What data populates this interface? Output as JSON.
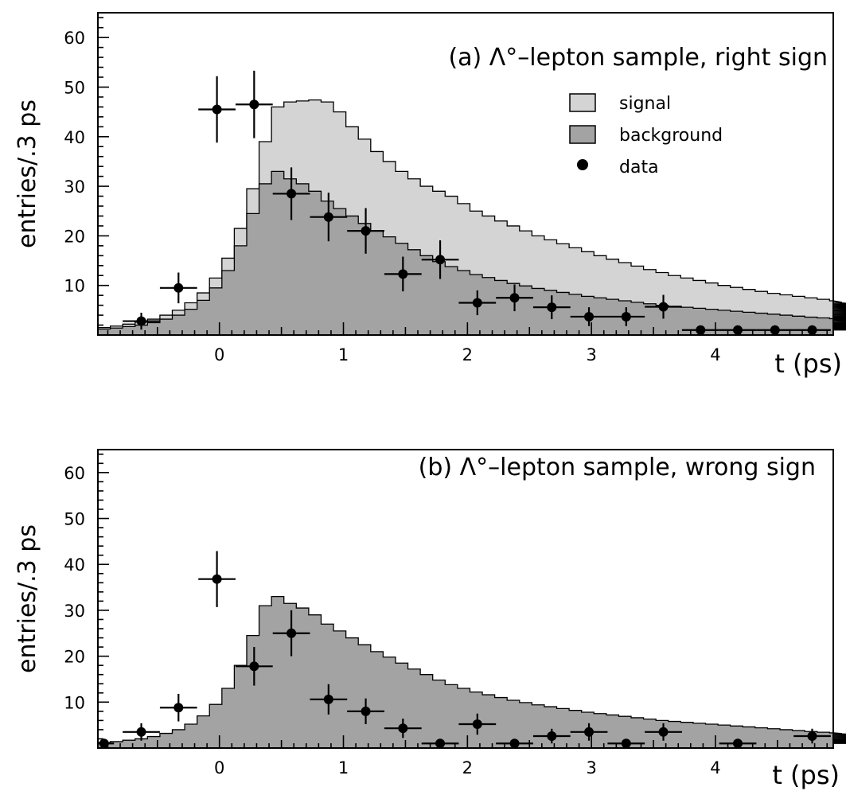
{
  "colors": {
    "signal": "#d4d4d4",
    "background": "#a3a3a3",
    "data": "#000000",
    "frame": "#000000"
  },
  "legend": {
    "position": "top-right",
    "items": [
      {
        "label": "signal",
        "symbol": "box",
        "color": "#d4d4d4"
      },
      {
        "label": "background",
        "symbol": "box",
        "color": "#a3a3a3"
      },
      {
        "label": "data",
        "symbol": "dot",
        "color": "#000000"
      }
    ]
  },
  "chart_data": [
    {
      "type": "area",
      "panel": "a",
      "title": "(a) Λ°–lepton sample, right sign",
      "xlabel": "t (ps)",
      "ylabel": "entries/.3 ps",
      "xlim": [
        -0.98,
        4.95
      ],
      "ylim": [
        0,
        65
      ],
      "xticks": [
        0,
        1,
        2,
        3,
        4
      ],
      "yticks": [
        10,
        20,
        30,
        40,
        50,
        60
      ],
      "grid": false,
      "hist_bin_width": 0.1,
      "hist_x_start": -0.98,
      "signal_total": [
        1.5,
        1.8,
        2.2,
        2.6,
        3.2,
        4,
        5,
        6.5,
        8.5,
        11.5,
        15.5,
        21.5,
        29.5,
        39,
        46,
        47,
        47.2,
        47.4,
        47,
        45,
        42,
        39.5,
        37,
        35,
        33,
        31.5,
        30,
        29,
        28,
        26.5,
        25,
        24,
        23,
        22,
        21,
        20,
        19.2,
        18.4,
        17.6,
        16.8,
        16,
        15.3,
        14.6,
        13.9,
        13.2,
        12.6,
        12,
        11.5,
        11,
        10.5,
        10,
        9.6,
        9.2,
        8.8,
        8.4,
        8.1,
        7.8,
        7.5,
        7.2,
        6.9,
        6.6,
        6.3,
        6.1,
        5.9,
        5.7,
        5.5,
        5.3,
        5.1,
        4.9,
        4.7,
        4.5,
        4.3,
        4.1,
        3.9,
        3.7,
        3.5,
        3.3,
        3.2,
        3.1,
        3,
        2.9,
        2.8,
        2.7,
        2.6,
        2.5,
        2.4,
        2.3,
        2.2,
        2.1,
        2,
        1.95,
        1.9,
        1.85,
        1.8,
        1.75,
        1.7,
        1.65,
        1.6,
        1.55,
        1.5
      ],
      "background": [
        1.2,
        1.4,
        1.7,
        2,
        2.5,
        3.2,
        4,
        5.2,
        7,
        9.5,
        13,
        18,
        24.5,
        30.5,
        33,
        31.5,
        30.5,
        29,
        27,
        25.5,
        24,
        22.5,
        21,
        19.8,
        18.5,
        17.2,
        16,
        14.8,
        13.8,
        13,
        12.2,
        11.6,
        11,
        10.4,
        9.9,
        9.4,
        9,
        8.6,
        8.2,
        7.8,
        7.5,
        7.2,
        6.9,
        6.6,
        6.3,
        6,
        5.8,
        5.6,
        5.4,
        5.2,
        5,
        4.8,
        4.6,
        4.4,
        4.2,
        4,
        3.8,
        3.6,
        3.45,
        3.3,
        3.15,
        3,
        2.9,
        2.8,
        2.7,
        2.6,
        2.5,
        2.4,
        2.3,
        2.2,
        2.1,
        2,
        1.95,
        1.9,
        1.85,
        1.8,
        1.75,
        1.7,
        1.65,
        1.6,
        1.55,
        1.5,
        1.45,
        1.4,
        1.35,
        1.3,
        1.25,
        1.2,
        1.15,
        1.1,
        1.05,
        1,
        1,
        1,
        1,
        1,
        1,
        1,
        1,
        1
      ],
      "data_points": [
        {
          "t": -0.63,
          "y": 2.8,
          "xerr": 0.15,
          "yerr": 1.7
        },
        {
          "t": -0.33,
          "y": 9.5,
          "xerr": 0.15,
          "yerr": 3.1
        },
        {
          "t": -0.02,
          "y": 45.5,
          "xerr": 0.15,
          "yerr": 6.7
        },
        {
          "t": 0.28,
          "y": 46.5,
          "xerr": 0.15,
          "yerr": 6.8
        },
        {
          "t": 0.58,
          "y": 28.5,
          "xerr": 0.15,
          "yerr": 5.3
        },
        {
          "t": 0.88,
          "y": 23.8,
          "xerr": 0.15,
          "yerr": 4.9
        },
        {
          "t": 1.18,
          "y": 21,
          "xerr": 0.15,
          "yerr": 4.6
        },
        {
          "t": 1.48,
          "y": 12.3,
          "xerr": 0.15,
          "yerr": 3.5
        },
        {
          "t": 1.78,
          "y": 15.2,
          "xerr": 0.15,
          "yerr": 3.9
        },
        {
          "t": 2.08,
          "y": 6.5,
          "xerr": 0.15,
          "yerr": 2.5
        },
        {
          "t": 2.38,
          "y": 7.5,
          "xerr": 0.15,
          "yerr": 2.7
        },
        {
          "t": 2.68,
          "y": 5.6,
          "xerr": 0.15,
          "yerr": 2.4
        },
        {
          "t": 2.98,
          "y": 3.7,
          "xerr": 0.15,
          "yerr": 1.9
        },
        {
          "t": 3.28,
          "y": 3.7,
          "xerr": 0.15,
          "yerr": 1.9
        },
        {
          "t": 3.58,
          "y": 5.7,
          "xerr": 0.15,
          "yerr": 2.4
        },
        {
          "t": 3.88,
          "y": 1,
          "xerr": 0.15,
          "yerr": 0
        },
        {
          "t": 4.18,
          "y": 1,
          "xerr": 0.15,
          "yerr": 0
        },
        {
          "t": 4.48,
          "y": 1,
          "xerr": 0.15,
          "yerr": 0
        },
        {
          "t": 4.78,
          "y": 1,
          "xerr": 0.15,
          "yerr": 0
        }
      ]
    },
    {
      "type": "area",
      "panel": "b",
      "title": "(b) Λ°–lepton sample, wrong sign",
      "xlabel": "t (ps)",
      "ylabel": "entries/.3 ps",
      "xlim": [
        -0.98,
        4.95
      ],
      "ylim": [
        0,
        65
      ],
      "xticks": [
        0,
        1,
        2,
        3,
        4
      ],
      "yticks": [
        10,
        20,
        30,
        40,
        50,
        60
      ],
      "grid": false,
      "hist_bin_width": 0.1,
      "hist_x_start": -0.98,
      "background": [
        1.2,
        1.4,
        1.7,
        2,
        2.5,
        3.2,
        4,
        5.2,
        7,
        9.5,
        13,
        18,
        24.5,
        31,
        33,
        31.5,
        30.5,
        29,
        27,
        25.5,
        24,
        22.5,
        21,
        19.8,
        18.5,
        17.2,
        16,
        14.8,
        13.8,
        13,
        12.2,
        11.6,
        11,
        10.4,
        9.9,
        9.4,
        9,
        8.6,
        8.2,
        7.8,
        7.5,
        7.2,
        6.9,
        6.6,
        6.3,
        6,
        5.8,
        5.6,
        5.4,
        5.2,
        5,
        4.8,
        4.6,
        4.4,
        4.2,
        4,
        3.8,
        3.6,
        3.45,
        3.3,
        3.15,
        3,
        2.9,
        2.8,
        2.7,
        2.6,
        2.5,
        2.4,
        2.3,
        2.2,
        2.1,
        2,
        1.95,
        1.9,
        1.85,
        1.8,
        1.75,
        1.7,
        1.65,
        1.6,
        1.55,
        1.5,
        1.45,
        1.4,
        1.35,
        1.3,
        1.25,
        1.2,
        1.15,
        1.1,
        1.05,
        1,
        1,
        1,
        1,
        1,
        1,
        1,
        1,
        1
      ],
      "data_points": [
        {
          "t": -0.93,
          "y": 1,
          "xerr": 0.08,
          "yerr": 0
        },
        {
          "t": -0.63,
          "y": 3.5,
          "xerr": 0.15,
          "yerr": 1.9
        },
        {
          "t": -0.33,
          "y": 8.8,
          "xerr": 0.15,
          "yerr": 3
        },
        {
          "t": -0.02,
          "y": 36.8,
          "xerr": 0.15,
          "yerr": 6.1
        },
        {
          "t": 0.28,
          "y": 17.8,
          "xerr": 0.15,
          "yerr": 4.2
        },
        {
          "t": 0.58,
          "y": 25,
          "xerr": 0.15,
          "yerr": 5
        },
        {
          "t": 0.88,
          "y": 10.6,
          "xerr": 0.15,
          "yerr": 3.3
        },
        {
          "t": 1.18,
          "y": 8,
          "xerr": 0.15,
          "yerr": 2.8
        },
        {
          "t": 1.48,
          "y": 4.3,
          "xerr": 0.15,
          "yerr": 2.1
        },
        {
          "t": 1.78,
          "y": 1,
          "xerr": 0.15,
          "yerr": 0
        },
        {
          "t": 2.08,
          "y": 5.2,
          "xerr": 0.15,
          "yerr": 2.3
        },
        {
          "t": 2.38,
          "y": 1,
          "xerr": 0.15,
          "yerr": 0
        },
        {
          "t": 2.68,
          "y": 2.6,
          "xerr": 0.15,
          "yerr": 1.6
        },
        {
          "t": 2.98,
          "y": 3.5,
          "xerr": 0.15,
          "yerr": 1.9
        },
        {
          "t": 3.28,
          "y": 1,
          "xerr": 0.15,
          "yerr": 0
        },
        {
          "t": 3.58,
          "y": 3.5,
          "xerr": 0.15,
          "yerr": 1.9
        },
        {
          "t": 4.18,
          "y": 1,
          "xerr": 0.15,
          "yerr": 0
        },
        {
          "t": 4.78,
          "y": 2.6,
          "xerr": 0.15,
          "yerr": 1.6
        }
      ]
    }
  ]
}
